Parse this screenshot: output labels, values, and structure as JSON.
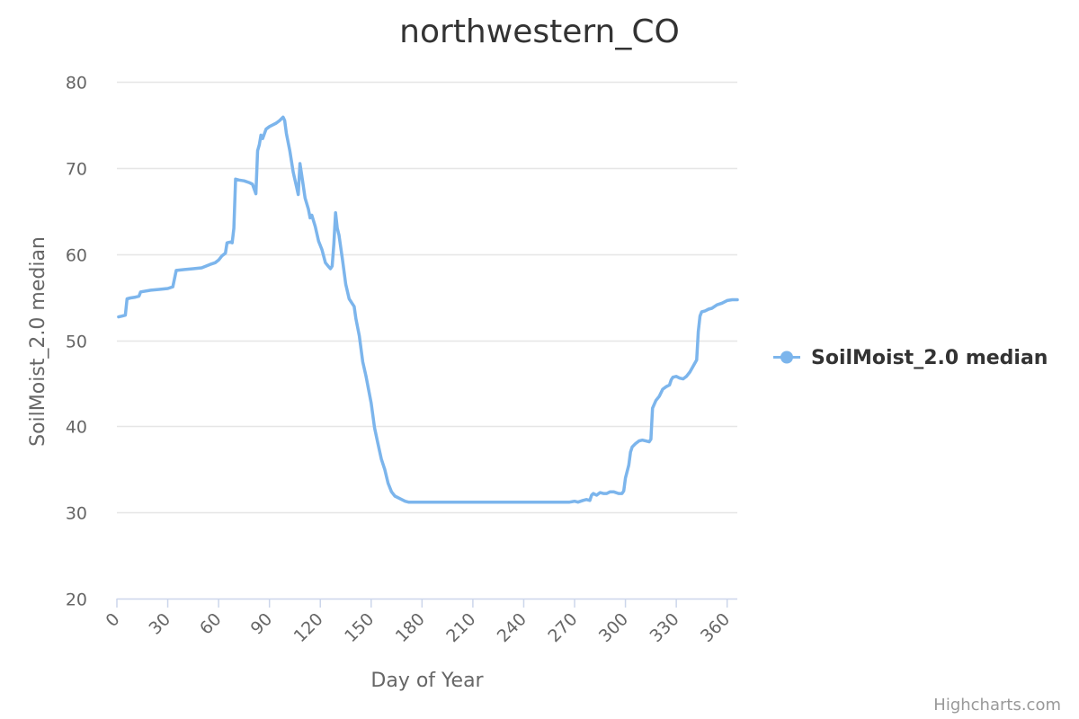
{
  "chart_data": {
    "type": "line",
    "title": "northwestern_CO",
    "xlabel": "Day of Year",
    "ylabel": "SoilMoist_2.0 median",
    "xlim": [
      0,
      366
    ],
    "ylim": [
      20,
      80
    ],
    "x_ticks": [
      0,
      30,
      60,
      90,
      120,
      150,
      180,
      210,
      240,
      270,
      300,
      330,
      360
    ],
    "y_ticks": [
      20,
      30,
      40,
      50,
      60,
      70,
      80
    ],
    "grid": true,
    "legend_position": "right",
    "series": [
      {
        "name": "SoilMoist_2.0 median",
        "color": "#7cb5ec",
        "points": [
          [
            1,
            52.7
          ],
          [
            3,
            52.8
          ],
          [
            5,
            52.9
          ],
          [
            6,
            54.8
          ],
          [
            8,
            54.9
          ],
          [
            11,
            55.0
          ],
          [
            13,
            55.1
          ],
          [
            14,
            55.6
          ],
          [
            20,
            55.8
          ],
          [
            25,
            55.9
          ],
          [
            30,
            56.0
          ],
          [
            33,
            56.2
          ],
          [
            35,
            58.1
          ],
          [
            40,
            58.2
          ],
          [
            45,
            58.3
          ],
          [
            50,
            58.4
          ],
          [
            55,
            58.8
          ],
          [
            58,
            59.0
          ],
          [
            60,
            59.3
          ],
          [
            62,
            59.8
          ],
          [
            64,
            60.1
          ],
          [
            65,
            61.3
          ],
          [
            67,
            61.4
          ],
          [
            68,
            61.3
          ],
          [
            69,
            63.0
          ],
          [
            70,
            68.7
          ],
          [
            72,
            68.6
          ],
          [
            75,
            68.5
          ],
          [
            78,
            68.3
          ],
          [
            80,
            68.1
          ],
          [
            82,
            67.0
          ],
          [
            83,
            72.0
          ],
          [
            84,
            72.7
          ],
          [
            85,
            73.8
          ],
          [
            86,
            73.4
          ],
          [
            88,
            74.5
          ],
          [
            90,
            74.8
          ],
          [
            92,
            75.0
          ],
          [
            94,
            75.2
          ],
          [
            96,
            75.5
          ],
          [
            98,
            75.9
          ],
          [
            99,
            75.5
          ],
          [
            100,
            74.0
          ],
          [
            102,
            72.0
          ],
          [
            104,
            69.5
          ],
          [
            106,
            67.8
          ],
          [
            107,
            66.9
          ],
          [
            108,
            70.5
          ],
          [
            109,
            69.2
          ],
          [
            111,
            66.5
          ],
          [
            113,
            65.2
          ],
          [
            114,
            64.2
          ],
          [
            115,
            64.5
          ],
          [
            117,
            63.2
          ],
          [
            119,
            61.5
          ],
          [
            121,
            60.5
          ],
          [
            123,
            59.0
          ],
          [
            125,
            58.5
          ],
          [
            126,
            58.3
          ],
          [
            127,
            58.6
          ],
          [
            128,
            61.2
          ],
          [
            129,
            64.8
          ],
          [
            130,
            63.0
          ],
          [
            131,
            62.2
          ],
          [
            133,
            59.5
          ],
          [
            135,
            56.5
          ],
          [
            137,
            54.8
          ],
          [
            139,
            54.2
          ],
          [
            140,
            53.9
          ],
          [
            141,
            52.5
          ],
          [
            143,
            50.5
          ],
          [
            145,
            47.5
          ],
          [
            147,
            45.8
          ],
          [
            150,
            42.7
          ],
          [
            152,
            39.8
          ],
          [
            154,
            38.0
          ],
          [
            156,
            36.2
          ],
          [
            158,
            35.0
          ],
          [
            160,
            33.4
          ],
          [
            162,
            32.4
          ],
          [
            164,
            31.9
          ],
          [
            167,
            31.6
          ],
          [
            170,
            31.3
          ],
          [
            172,
            31.2
          ],
          [
            180,
            31.2
          ],
          [
            200,
            31.2
          ],
          [
            220,
            31.2
          ],
          [
            240,
            31.2
          ],
          [
            260,
            31.2
          ],
          [
            267,
            31.2
          ],
          [
            270,
            31.3
          ],
          [
            272,
            31.2
          ],
          [
            275,
            31.4
          ],
          [
            277,
            31.5
          ],
          [
            279,
            31.4
          ],
          [
            280,
            32.0
          ],
          [
            281,
            32.2
          ],
          [
            283,
            32.0
          ],
          [
            285,
            32.3
          ],
          [
            287,
            32.2
          ],
          [
            289,
            32.2
          ],
          [
            291,
            32.4
          ],
          [
            293,
            32.4
          ],
          [
            296,
            32.2
          ],
          [
            298,
            32.2
          ],
          [
            299,
            32.5
          ],
          [
            300,
            34.0
          ],
          [
            302,
            35.5
          ],
          [
            303,
            37.0
          ],
          [
            304,
            37.6
          ],
          [
            306,
            38.0
          ],
          [
            308,
            38.3
          ],
          [
            310,
            38.4
          ],
          [
            312,
            38.3
          ],
          [
            314,
            38.2
          ],
          [
            315,
            38.5
          ],
          [
            316,
            42.1
          ],
          [
            318,
            43.0
          ],
          [
            320,
            43.5
          ],
          [
            322,
            44.3
          ],
          [
            324,
            44.6
          ],
          [
            326,
            44.8
          ],
          [
            327,
            45.4
          ],
          [
            328,
            45.7
          ],
          [
            330,
            45.8
          ],
          [
            332,
            45.6
          ],
          [
            334,
            45.5
          ],
          [
            336,
            45.8
          ],
          [
            338,
            46.3
          ],
          [
            340,
            47.0
          ],
          [
            342,
            47.7
          ],
          [
            343,
            51.0
          ],
          [
            344,
            52.8
          ],
          [
            345,
            53.3
          ],
          [
            347,
            53.4
          ],
          [
            349,
            53.6
          ],
          [
            351,
            53.7
          ],
          [
            354,
            54.1
          ],
          [
            357,
            54.3
          ],
          [
            360,
            54.6
          ],
          [
            363,
            54.7
          ],
          [
            366,
            54.7
          ]
        ]
      }
    ]
  },
  "legend": {
    "label": "SoilMoist_2.0 median"
  },
  "credits": "Highcharts.com"
}
